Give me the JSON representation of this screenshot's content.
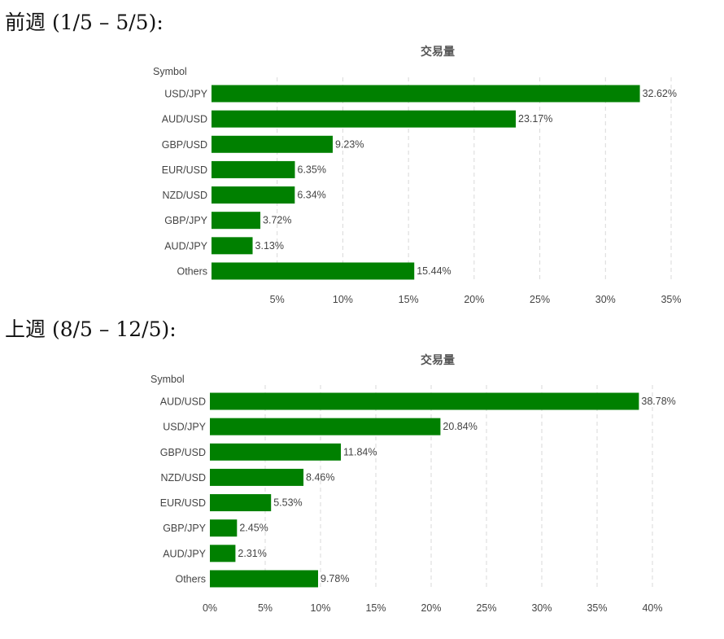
{
  "sections": [
    {
      "heading": "前週 (1/5 – 5/5):",
      "chart_data": {
        "type": "bar",
        "orientation": "horizontal",
        "title": "交易量",
        "ylabel": "Symbol",
        "categories": [
          "USD/JPY",
          "AUD/USD",
          "GBP/USD",
          "EUR/USD",
          "NZD/USD",
          "GBP/JPY",
          "AUD/JPY",
          "Others"
        ],
        "values": [
          32.62,
          23.17,
          9.23,
          6.35,
          6.34,
          3.72,
          3.13,
          15.44
        ],
        "value_labels": [
          "32.62%",
          "23.17%",
          "9.23%",
          "6.35%",
          "6.34%",
          "3.72%",
          "3.13%",
          "15.44%"
        ],
        "xlim": [
          0,
          35
        ],
        "xticks": [
          5,
          10,
          15,
          20,
          25,
          30,
          35
        ],
        "xtick_labels": [
          "5%",
          "10%",
          "15%",
          "20%",
          "25%",
          "30%",
          "35%"
        ],
        "grid": true,
        "bar_color": "#008000"
      }
    },
    {
      "heading": "上週 (8/5 – 12/5):",
      "chart_data": {
        "type": "bar",
        "orientation": "horizontal",
        "title": "交易量",
        "ylabel": "Symbol",
        "categories": [
          "AUD/USD",
          "USD/JPY",
          "GBP/USD",
          "NZD/USD",
          "EUR/USD",
          "GBP/JPY",
          "AUD/JPY",
          "Others"
        ],
        "values": [
          38.78,
          20.84,
          11.84,
          8.46,
          5.53,
          2.45,
          2.31,
          9.78
        ],
        "value_labels": [
          "38.78%",
          "20.84%",
          "11.84%",
          "8.46%",
          "5.53%",
          "2.45%",
          "2.31%",
          "9.78%"
        ],
        "xlim": [
          0,
          40
        ],
        "xticks": [
          0,
          5,
          10,
          15,
          20,
          25,
          30,
          35,
          40
        ],
        "xtick_labels": [
          "0%",
          "5%",
          "10%",
          "15%",
          "20%",
          "25%",
          "30%",
          "35%",
          "40%"
        ],
        "grid": true,
        "bar_color": "#008000"
      }
    }
  ]
}
